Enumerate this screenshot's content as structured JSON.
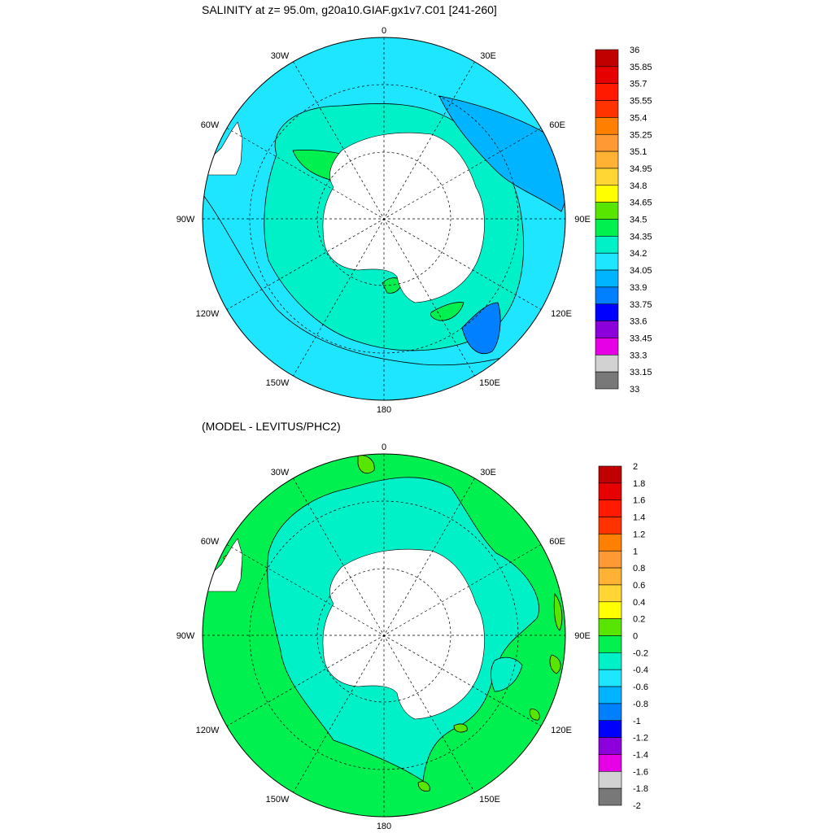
{
  "panels": [
    {
      "title": "SALINITY at z=  95.0m, g20a10.GIAF.gx1v7.C01 [241-260]",
      "lon_labels": [
        "0",
        "30E",
        "60E",
        "90E",
        "120E",
        "150E",
        "180",
        "150W",
        "120W",
        "90W",
        "60W",
        "30W"
      ],
      "colorbar": {
        "labels": [
          "36",
          "35.85",
          "35.7",
          "35.55",
          "35.4",
          "35.25",
          "35.1",
          "34.95",
          "34.8",
          "34.65",
          "34.5",
          "34.35",
          "34.2",
          "34.05",
          "33.9",
          "33.75",
          "33.6",
          "33.45",
          "33.3",
          "33.15",
          "33"
        ],
        "colors": [
          "#c00000",
          "#e60000",
          "#ff1a00",
          "#ff3300",
          "#ff8000",
          "#ff9933",
          "#ffb233",
          "#ffd633",
          "#ffff00",
          "#58e600",
          "#00f050",
          "#00f0c8",
          "#1ee6ff",
          "#00b4ff",
          "#0080ff",
          "#0000ff",
          "#8c00dc",
          "#e600e6",
          "#d2d2d2",
          "#787878"
        ]
      }
    },
    {
      "title": "(MODEL - LEVITUS/PHC2)",
      "lon_labels": [
        "0",
        "30E",
        "60E",
        "90E",
        "120E",
        "150E",
        "180",
        "150W",
        "120W",
        "90W",
        "60W",
        "30W"
      ],
      "colorbar": {
        "labels": [
          "2",
          "1.8",
          "1.6",
          "1.4",
          "1.2",
          "1",
          "0.8",
          "0.6",
          "0.4",
          "0.2",
          "0",
          "-0.2",
          "-0.4",
          "-0.6",
          "-0.8",
          "-1",
          "-1.2",
          "-1.4",
          "-1.6",
          "-1.8",
          "-2"
        ],
        "colors": [
          "#c00000",
          "#e60000",
          "#ff1a00",
          "#ff3300",
          "#ff8000",
          "#ff9933",
          "#ffb233",
          "#ffd633",
          "#ffff00",
          "#58e600",
          "#00f050",
          "#00f0c8",
          "#1ee6ff",
          "#00b4ff",
          "#0080ff",
          "#0000ff",
          "#8c00dc",
          "#e600e6",
          "#d2d2d2",
          "#787878"
        ]
      }
    }
  ]
}
